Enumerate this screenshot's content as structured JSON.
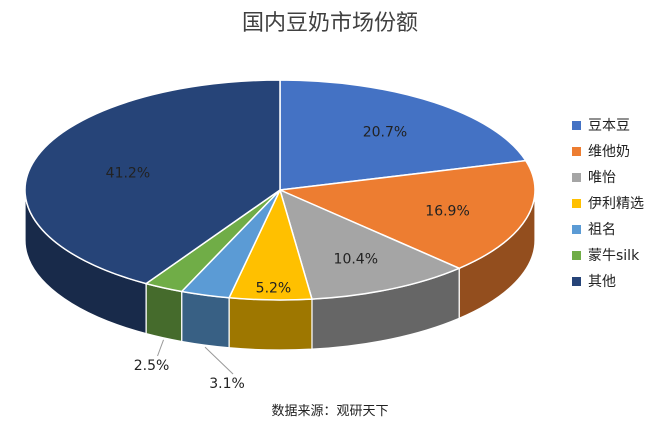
{
  "chart_data": {
    "type": "pie",
    "title": "国内豆奶市场份额",
    "source": "数据来源：观研天下",
    "legend_position": "right",
    "slices": [
      {
        "name": "豆本豆",
        "value": 20.7,
        "label": "20.7%",
        "color": "#4472C4"
      },
      {
        "name": "维他奶",
        "value": 16.9,
        "label": "16.9%",
        "color": "#ED7D31"
      },
      {
        "name": "唯怡",
        "value": 10.4,
        "label": "10.4%",
        "color": "#A5A5A5"
      },
      {
        "name": "伊利精选",
        "value": 5.2,
        "label": "5.2%",
        "color": "#FFC000"
      },
      {
        "name": "祖名",
        "value": 3.1,
        "label": "3.1%",
        "color": "#5B9BD5"
      },
      {
        "name": "蒙牛silk",
        "value": 2.5,
        "label": "2.5%",
        "color": "#70AD47"
      },
      {
        "name": "其他",
        "value": 41.2,
        "label": "41.2%",
        "color": "#264478"
      }
    ]
  }
}
